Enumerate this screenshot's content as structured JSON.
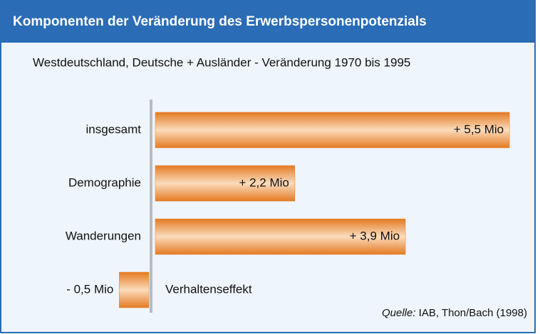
{
  "chart_data": {
    "type": "bar",
    "orientation": "horizontal",
    "title": "Komponenten der Veränderung des Erwerbspersonenpotenzials",
    "subtitle": "Westdeutschland, Deutsche + Ausländer - Veränderung 1970 bis 1995",
    "categories": [
      "insgesamt",
      "Demographie",
      "Wanderungen",
      "Verhaltenseffekt"
    ],
    "values": [
      5.5,
      2.2,
      3.9,
      -0.5
    ],
    "value_labels": [
      "+ 5,5 Mio",
      "+ 2,2 Mio",
      "+ 3,9 Mio",
      "- 0,5 Mio"
    ],
    "color": "#e8802a",
    "source_label": "Quelle:",
    "source": "IAB, Thon/Bach (1998)"
  }
}
